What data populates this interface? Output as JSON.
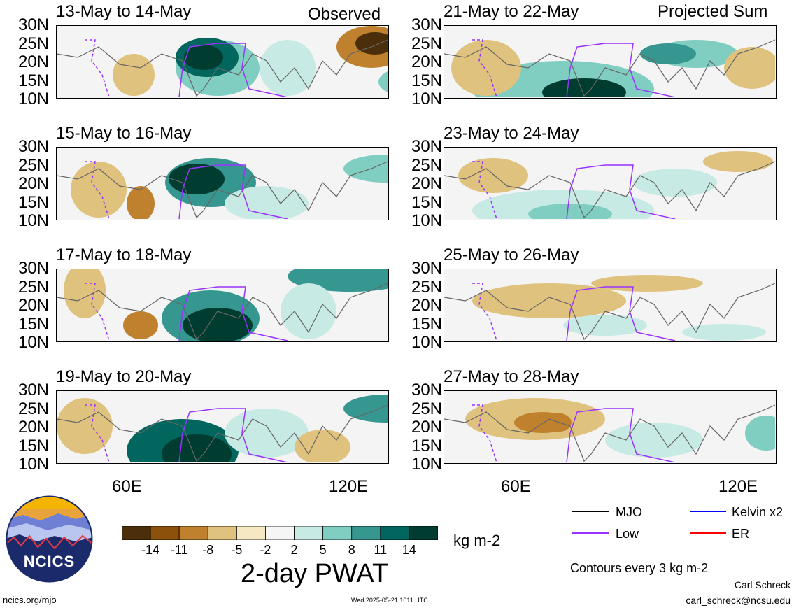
{
  "left_column_label": "Observed",
  "right_column_label": "Projected Sum",
  "panels_left": [
    {
      "title": "13-May to 14-May"
    },
    {
      "title": "15-May to 16-May"
    },
    {
      "title": "17-May to 18-May"
    },
    {
      "title": "19-May to 20-May"
    }
  ],
  "panels_right": [
    {
      "title": "21-May to 22-May"
    },
    {
      "title": "23-May to 24-May"
    },
    {
      "title": "25-May to 26-May"
    },
    {
      "title": "27-May to 28-May"
    }
  ],
  "lat_labels": [
    "30N",
    "25N",
    "20N",
    "15N",
    "10N"
  ],
  "lon_labels": [
    "60E",
    "120E"
  ],
  "legend": {
    "mjo": "MJO",
    "kelvin": "Kelvin x2",
    "low": "Low",
    "er": "ER",
    "colors": {
      "mjo": "#000000",
      "kelvin": "#0000ff",
      "low": "#9933ff",
      "er": "#ff0000"
    }
  },
  "colorbar": {
    "labels": [
      "-14",
      "-11",
      "-8",
      "-5",
      "-2",
      "2",
      "5",
      "8",
      "11",
      "14"
    ],
    "colors": [
      "#4a2f0a",
      "#8c510a",
      "#bf812d",
      "#dfc27d",
      "#f6e8c3",
      "#f5f5f5",
      "#c7eae5",
      "#80cdc1",
      "#35978f",
      "#01665e",
      "#003c30"
    ],
    "units": "kg m-2",
    "title": "2-day PWAT"
  },
  "contour_note": "Contours every 3 kg m-2",
  "author": "Carl Schreck",
  "email": "carl_schreck@ncsu.edu",
  "website": "ncics.org/mjo",
  "timestamp": "Wed 2025-05-21 1011 UTC",
  "logo_text": "NCICS",
  "chart_data": {
    "type": "heatmap",
    "title": "2-day PWAT",
    "units": "kg m-2",
    "lat_range": [
      "10N",
      "30N"
    ],
    "lon_ticks": [
      "60E",
      "120E"
    ],
    "color_levels": [
      -14,
      -11,
      -8,
      -5,
      -2,
      2,
      5,
      8,
      11,
      14
    ],
    "series": [
      {
        "name": "MJO"
      },
      {
        "name": "Kelvin x2"
      },
      {
        "name": "Low"
      },
      {
        "name": "ER"
      }
    ]
  }
}
